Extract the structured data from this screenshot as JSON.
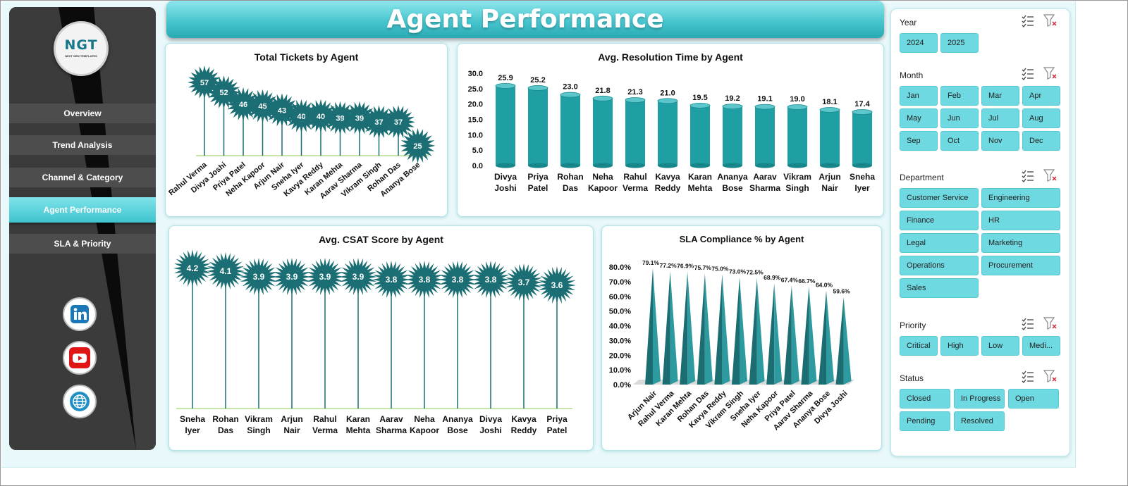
{
  "title": "Agent Performance",
  "logo": {
    "main": "NGT",
    "sub": "NEXT GEN TEMPLATES"
  },
  "nav": [
    "Overview",
    "Trend Analysis",
    "Channel & Category",
    "Agent Performance",
    "SLA & Priority"
  ],
  "nav_active": "Agent Performance",
  "social": [
    "linkedin-icon",
    "youtube-icon",
    "globe-icon"
  ],
  "colors": {
    "teal_dark": "#1b6e73",
    "teal_bar": "#1f9ea3",
    "accent": "#4fcbd3",
    "chip": "#6fd9e1"
  },
  "charts": {
    "tickets": {
      "title": "Total Tickets by Agent",
      "chart_data": {
        "type": "bar",
        "title": "Total Tickets by Agent",
        "categories": [
          "Rahul Verma",
          "Divya Joshi",
          "Priya Patel",
          "Neha Kapoor",
          "Arjun Nair",
          "Sneha Iyer",
          "Kavya Reddy",
          "Karan Mehta",
          "Aarav Sharma",
          "Vikram Singh",
          "Rohan Das",
          "Ananya Bose"
        ],
        "values": [
          57,
          52,
          46,
          45,
          43,
          40,
          40,
          39,
          39,
          37,
          37,
          25
        ]
      }
    },
    "resolution": {
      "title": "Avg. Resolution Time by Agent",
      "chart_data": {
        "type": "bar",
        "title": "Avg. Resolution Time by Agent",
        "categories": [
          "Divya Joshi",
          "Priya Patel",
          "Rohan Das",
          "Neha Kapoor",
          "Rahul Verma",
          "Kavya Reddy",
          "Karan Mehta",
          "Ananya Bose",
          "Aarav Sharma",
          "Vikram Singh",
          "Arjun Nair",
          "Sneha Iyer"
        ],
        "values": [
          25.9,
          25.2,
          23.0,
          21.8,
          21.3,
          21.0,
          19.5,
          19.2,
          19.1,
          19.0,
          18.1,
          17.4
        ],
        "ylim": [
          0,
          30
        ],
        "yticks": [
          "0.0",
          "5.0",
          "10.0",
          "15.0",
          "20.0",
          "25.0",
          "30.0"
        ]
      }
    },
    "csat": {
      "title": "Avg. CSAT Score by Agent",
      "chart_data": {
        "type": "bar",
        "title": "Avg. CSAT Score by Agent",
        "categories": [
          "Sneha Iyer",
          "Rohan Das",
          "Vikram Singh",
          "Arjun Nair",
          "Rahul Verma",
          "Karan Mehta",
          "Aarav Sharma",
          "Neha Kapoor",
          "Ananya Bose",
          "Divya Joshi",
          "Kavya Reddy",
          "Priya Patel"
        ],
        "values": [
          4.2,
          4.1,
          3.9,
          3.9,
          3.9,
          3.9,
          3.8,
          3.8,
          3.8,
          3.8,
          3.7,
          3.6
        ]
      }
    },
    "sla": {
      "title": "SLA Compliance % by Agent",
      "chart_data": {
        "type": "bar",
        "title": "SLA Compliance % by Agent",
        "categories": [
          "Arjun Nair",
          "Rahul Verma",
          "Karan Mehta",
          "Rohan Das",
          "Kavya Reddy",
          "Vikram Singh",
          "Sneha Iyer",
          "Neha Kapoor",
          "Priya Patel",
          "Aarav Sharma",
          "Ananya Bose",
          "Divya Joshi"
        ],
        "values": [
          79.1,
          77.2,
          76.9,
          75.7,
          75.0,
          73.0,
          72.5,
          68.9,
          67.4,
          66.7,
          64.0,
          59.6
        ],
        "value_labels": [
          "79.1%",
          "77.2%",
          "76.9%",
          "75.7%",
          "75.0%",
          "73.0%",
          "72.5%",
          "68.9%",
          "67.4%",
          "66.7%",
          "64.0%",
          "59.6%"
        ],
        "ylim": [
          0,
          80
        ],
        "yticks": [
          "0.0%",
          "10.0%",
          "20.0%",
          "30.0%",
          "40.0%",
          "50.0%",
          "60.0%",
          "70.0%",
          "80.0%"
        ]
      }
    }
  },
  "slicers": [
    {
      "label": "Year",
      "items": [
        "2024",
        "2025"
      ]
    },
    {
      "label": "Month",
      "items": [
        "Jan",
        "Feb",
        "Mar",
        "Apr",
        "May",
        "Jun",
        "Jul",
        "Aug",
        "Sep",
        "Oct",
        "Nov",
        "Dec"
      ]
    },
    {
      "label": "Department",
      "items": [
        "Customer Service",
        "Engineering",
        "Finance",
        "HR",
        "Legal",
        "Marketing",
        "Operations",
        "Procurement",
        "Sales"
      ]
    },
    {
      "label": "Priority",
      "items": [
        "Critical",
        "High",
        "Low",
        "Medi..."
      ]
    },
    {
      "label": "Status",
      "items": [
        "Closed",
        "In Progress",
        "Open",
        "Pending",
        "Resolved"
      ]
    }
  ]
}
